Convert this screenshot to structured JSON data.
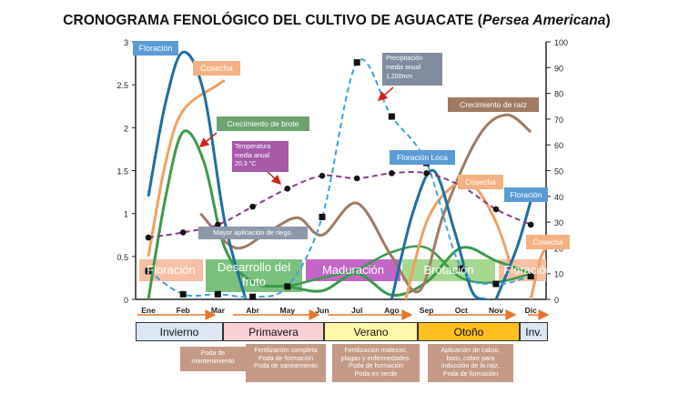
{
  "title": {
    "main": "CRONOGRAMA FENOLÓGICO DEL CULTIVO DE AGUACATE (",
    "species": "Persea Americana",
    "close": ")"
  },
  "chart_data": {
    "type": "line",
    "x": [
      "Ene",
      "Feb",
      "Mar",
      "Abr",
      "May",
      "Jun",
      "Jul",
      "Ago",
      "Sep",
      "Oct",
      "Nov",
      "Dic"
    ],
    "y_left": {
      "ylim": [
        0,
        3
      ],
      "ticks": [
        "0",
        "0.5",
        "1",
        "1.5",
        "2",
        "2.5",
        "3"
      ]
    },
    "y_right": {
      "ylim": [
        0,
        100
      ],
      "ticks": [
        "0",
        "10",
        "20",
        "30",
        "40",
        "50",
        "60",
        "70",
        "80",
        "90",
        "100"
      ]
    },
    "series": [
      {
        "name": "Precipitación media anual 1,200mm",
        "axis": "right",
        "color": "#3aa3dc",
        "style": "dashed-squares",
        "points": [
          [
            0,
            11
          ],
          [
            1,
            2
          ],
          [
            2,
            2
          ],
          [
            3,
            1
          ],
          [
            4,
            5
          ],
          [
            5,
            32
          ],
          [
            6,
            92
          ],
          [
            7,
            71
          ],
          [
            8,
            53
          ],
          [
            9,
            12
          ],
          [
            10,
            6
          ],
          [
            11,
            9
          ]
        ]
      },
      {
        "name": "Temperatura media anual 20.3 °C",
        "axis": "right",
        "color": "#8b3a8b",
        "style": "dashed-dots",
        "points": [
          [
            0,
            24
          ],
          [
            1,
            26
          ],
          [
            2,
            29
          ],
          [
            3,
            36
          ],
          [
            4,
            43
          ],
          [
            5,
            48
          ],
          [
            6,
            47
          ],
          [
            7,
            49
          ],
          [
            8,
            49
          ],
          [
            9,
            44
          ],
          [
            10,
            35
          ],
          [
            11,
            29
          ]
        ]
      },
      {
        "name": "Floración",
        "axis": "left",
        "color": "#1c6ea4",
        "peak_month": "Feb",
        "peak_value": 2.9
      },
      {
        "name": "Cosecha",
        "axis": "left",
        "color": "#f0a060",
        "peak_month": "Mar",
        "peak_value": 2.55
      },
      {
        "name": "Crecimiento de brote",
        "axis": "left",
        "color": "#3a9a4a",
        "peak_month": "Feb",
        "peak_value": 2.05
      },
      {
        "name": "Crecimiento de raiz",
        "axis": "left",
        "color": "#a07a62",
        "peak_month": "Nov",
        "peak_value": 2.15
      },
      {
        "name": "Floración Loca",
        "axis": "left",
        "color": "#1c6ea4",
        "peak_month": "Sep",
        "peak_value": 1.5
      }
    ]
  },
  "labels": {
    "floracion": "Floración",
    "cosecha": "Cosecha",
    "brote": "Crecimiento de brote",
    "temperatura": "Temperatura\nmedia anual\n20.3 °C",
    "precipitacion": "Precipitación\nmedia anual\n1,200mm",
    "raiz": "Crecimiento de raíz",
    "floracion_loca": "Floración Loca",
    "cosecha2": "Cosecha",
    "floracion2": "Floración",
    "cosecha3": "Cosecha",
    "riego": "Mayor aplicación de riego."
  },
  "phases": {
    "floracion": "Floración",
    "desarrollo": "Desarrollo del\nfruto",
    "maduracion": "Maduración",
    "brotacion": "Brotación",
    "floracion2": "Floración"
  },
  "seasons": [
    "Invierno",
    "Primavera",
    "Verano",
    "Otoño",
    "Inv."
  ],
  "tasks": {
    "invierno": "Poda de\nmantenimiento",
    "primavera": "Fertilización completa\nPoda de formación\nPoda de saneamiento",
    "verano": "Fertilización malezas,\nplagas y enfermedades.\nPoda de formación\nPoda en verde",
    "otono": "Aplicación de calcio,\nboro, cobre para\ninducción de la raíz.\nPoda de formación"
  },
  "colors": {
    "floracion_blue": "#1c6ea4",
    "cosecha_orange": "#f0a060",
    "brote_green": "#3a9a4a",
    "raiz_brown": "#a07a62",
    "precip_blue": "#3aa3dc",
    "temp_purple": "#8b3a8b"
  }
}
